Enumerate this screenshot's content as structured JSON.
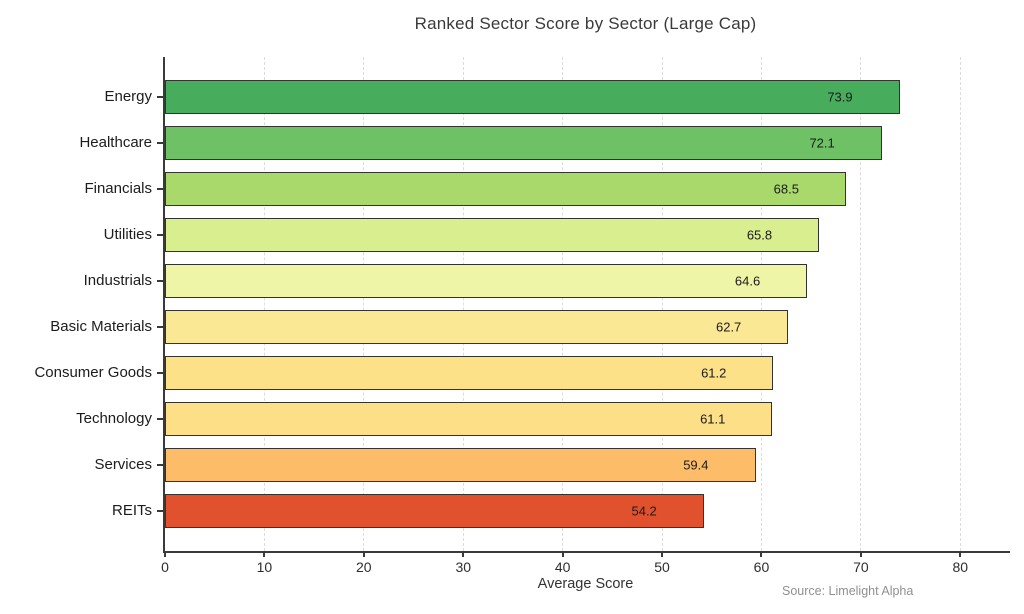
{
  "chart_data": {
    "type": "bar",
    "orientation": "horizontal",
    "title": "Ranked Sector Score by Sector (Large Cap)",
    "xlabel": "Average Score",
    "ylabel": "",
    "categories": [
      "Energy",
      "Healthcare",
      "Financials",
      "Utilities",
      "Industrials",
      "Basic Materials",
      "Consumer Goods",
      "Technology",
      "Services",
      "REITs"
    ],
    "values": [
      73.9,
      72.1,
      68.5,
      65.8,
      64.6,
      62.7,
      61.2,
      61.1,
      59.4,
      54.2
    ],
    "bar_colors": [
      "#47ac5b",
      "#6ec164",
      "#a8d96a",
      "#d9ee8f",
      "#eff5a7",
      "#fbe894",
      "#fce189",
      "#fcdf86",
      "#fdbd68",
      "#e2512e"
    ],
    "bar_edge_color": "#333333",
    "xlim": [
      0,
      85
    ],
    "xticks": [
      0,
      10,
      20,
      30,
      40,
      50,
      60,
      70,
      80
    ],
    "grid": "vertical-dashed",
    "gridline_color": "#dcdcdc",
    "legend": "none",
    "annotation": "Source: Limelight Alpha"
  }
}
